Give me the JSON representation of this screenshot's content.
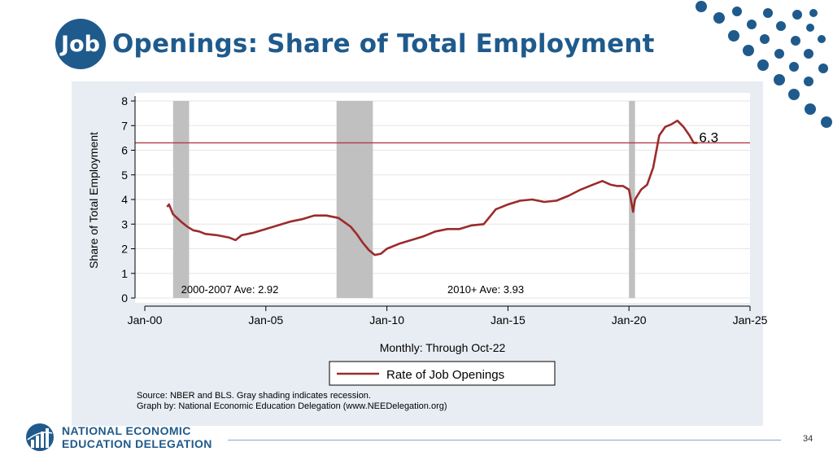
{
  "slide": {
    "title_badge": "Job",
    "title_rest": "Openings: Share of Total Employment",
    "page_number": "34",
    "accent_color": "#1f5a8c"
  },
  "footer": {
    "logo_icon": "globe-bars-icon",
    "org_line1": "NATIONAL ECONOMIC",
    "org_line2": "EDUCATION DELEGATION"
  },
  "chart_data": {
    "type": "line",
    "ylabel": "Share of Total Employment",
    "xlabel": "Monthly: Through Oct-22",
    "ylim": [
      0,
      8
    ],
    "yticks": [
      "0",
      "1",
      "2",
      "3",
      "4",
      "5",
      "6",
      "7",
      "8"
    ],
    "xlim": [
      2000.0,
      2025.0
    ],
    "xticks": [
      {
        "x": 2000.0,
        "label": "Jan-00"
      },
      {
        "x": 2005.0,
        "label": "Jan-05"
      },
      {
        "x": 2010.0,
        "label": "Jan-10"
      },
      {
        "x": 2015.0,
        "label": "Jan-15"
      },
      {
        "x": 2020.0,
        "label": "Jan-20"
      },
      {
        "x": 2025.0,
        "label": "Jan-25"
      }
    ],
    "grid": true,
    "recessions": [
      {
        "start": 2001.17,
        "end": 2001.83
      },
      {
        "start": 2007.92,
        "end": 2009.42
      },
      {
        "start": 2020.0,
        "end": 2020.25
      }
    ],
    "recession_color": "#c0c0c0",
    "reference_line": {
      "y": 6.3,
      "color": "#b23a48"
    },
    "latest_label": "6.3",
    "series": [
      {
        "name": "Rate of Job Openings",
        "color": "#9b2b2b",
        "x": [
          2000.92,
          2001.0,
          2001.17,
          2001.5,
          2001.75,
          2002.0,
          2002.25,
          2002.5,
          2003.0,
          2003.25,
          2003.5,
          2003.75,
          2004.0,
          2004.5,
          2005.0,
          2005.5,
          2006.0,
          2006.5,
          2007.0,
          2007.5,
          2008.0,
          2008.5,
          2008.75,
          2009.0,
          2009.25,
          2009.5,
          2009.75,
          2010.0,
          2010.5,
          2011.0,
          2011.5,
          2012.0,
          2012.5,
          2013.0,
          2013.5,
          2014.0,
          2014.25,
          2014.5,
          2015.0,
          2015.5,
          2016.0,
          2016.5,
          2017.0,
          2017.5,
          2018.0,
          2018.5,
          2018.9,
          2019.25,
          2019.5,
          2019.75,
          2020.0,
          2020.17,
          2020.25,
          2020.5,
          2020.75,
          2021.0,
          2021.25,
          2021.5,
          2021.75,
          2022.0,
          2022.25,
          2022.5,
          2022.67,
          2022.83
        ],
        "values": [
          3.7,
          3.8,
          3.4,
          3.1,
          2.9,
          2.75,
          2.7,
          2.6,
          2.55,
          2.5,
          2.45,
          2.35,
          2.55,
          2.65,
          2.8,
          2.95,
          3.1,
          3.2,
          3.35,
          3.35,
          3.25,
          2.9,
          2.6,
          2.25,
          1.95,
          1.75,
          1.8,
          2.0,
          2.2,
          2.35,
          2.5,
          2.7,
          2.8,
          2.8,
          2.95,
          3.0,
          3.3,
          3.6,
          3.8,
          3.95,
          4.0,
          3.9,
          3.95,
          4.15,
          4.4,
          4.6,
          4.75,
          4.6,
          4.55,
          4.55,
          4.4,
          3.5,
          4.0,
          4.4,
          4.6,
          5.3,
          6.6,
          6.95,
          7.05,
          7.2,
          6.95,
          6.6,
          6.3,
          6.3
        ]
      }
    ],
    "annotations": [
      {
        "x": 2001.5,
        "y": 0.2,
        "text": "2000-2007 Ave: 2.92"
      },
      {
        "x": 2012.5,
        "y": 0.2,
        "text": "2010+ Ave: 3.93"
      }
    ],
    "legend": {
      "position": "bottom-center",
      "label": "Rate of Job Openings"
    },
    "source_line1": "Source: NBER and BLS. Gray shading indicates recession.",
    "source_line2": "Graph by: National Economic Education Delegation (www.NEEDelegation.org)"
  }
}
